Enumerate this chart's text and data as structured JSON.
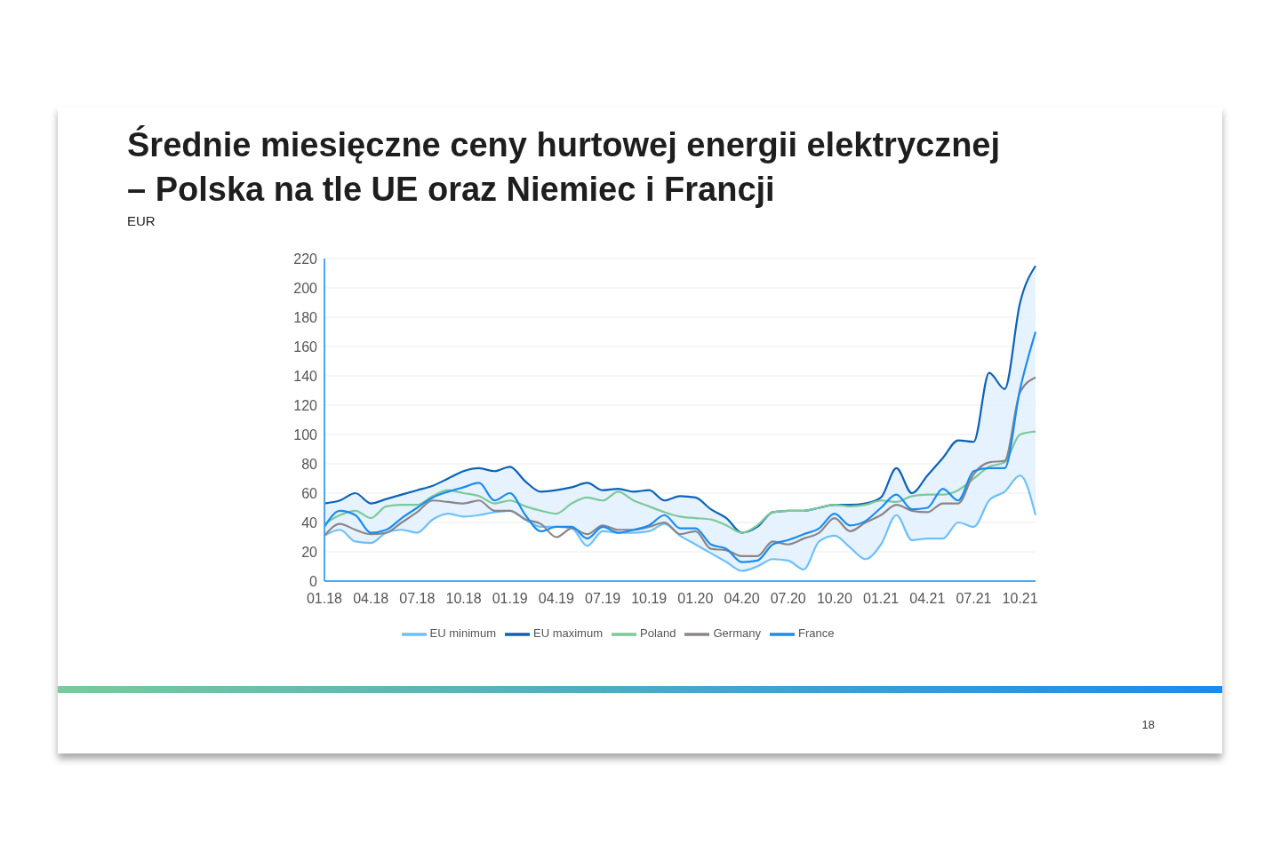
{
  "chart_data": {
    "type": "line",
    "title": "Średnie miesięczne ceny hurtowej energii elektrycznej\n– Polska na tle UE oraz Niemiec i Francji",
    "annotations": [
      "EUR",
      "18"
    ],
    "categories": [
      "01.18",
      null,
      null,
      "04.18",
      null,
      null,
      "07.18",
      null,
      null,
      "10.18",
      null,
      null,
      "01.19",
      null,
      null,
      "04.19",
      null,
      null,
      "07.19",
      null,
      null,
      "10.19",
      null,
      null,
      "01.20",
      null,
      null,
      "04.20",
      null,
      null,
      "07.20",
      null,
      null,
      "10.20",
      null,
      null,
      "01.21",
      null,
      null,
      "04.21",
      null,
      null,
      "07.21",
      null,
      null,
      "10.21",
      null
    ],
    "ylim": [
      0,
      220
    ],
    "yticks": [
      0,
      20,
      40,
      60,
      80,
      100,
      120,
      140,
      160,
      180,
      200,
      220
    ],
    "grid": "y",
    "legend": "bottom",
    "series": [
      {
        "name": "EU minimum",
        "color": "#6fc0f7",
        "values": [
          31,
          35,
          27,
          26,
          33,
          35,
          33,
          42,
          46,
          44,
          45,
          47,
          48,
          42,
          37,
          37,
          36,
          24,
          34,
          33,
          33,
          34,
          39,
          31,
          25,
          19,
          13,
          7,
          10,
          15,
          14,
          8,
          27,
          31,
          23,
          15,
          25,
          45,
          28,
          29,
          29,
          40,
          37,
          55,
          61,
          72,
          45
        ],
        "lower": [
          31,
          35,
          27,
          26,
          33,
          35,
          33,
          42,
          46,
          44,
          45,
          47,
          48,
          42,
          37,
          37,
          36,
          24,
          34,
          33,
          33,
          34,
          39,
          31,
          25,
          19,
          13,
          7,
          10,
          15,
          14,
          8,
          27,
          31,
          23,
          15,
          25,
          45,
          28,
          29,
          29,
          40,
          37,
          55,
          61,
          72,
          45
        ],
        "upper": [
          53,
          55,
          60,
          53,
          56,
          59,
          62,
          65,
          70,
          75,
          77,
          75,
          78,
          68,
          61,
          62,
          64,
          67,
          62,
          63,
          61,
          62,
          55,
          58,
          57,
          49,
          43,
          33,
          37,
          47,
          48,
          48,
          50,
          52,
          52,
          53,
          57,
          77,
          60,
          72,
          84,
          96,
          95,
          142,
          131,
          190,
          215
        ]
      },
      {
        "name": "EU maximum",
        "color": "#0b63b8",
        "values": [
          53,
          55,
          60,
          53,
          56,
          59,
          62,
          65,
          70,
          75,
          77,
          75,
          78,
          68,
          61,
          62,
          64,
          67,
          62,
          63,
          61,
          62,
          55,
          58,
          57,
          49,
          43,
          33,
          37,
          47,
          48,
          48,
          50,
          52,
          52,
          53,
          57,
          77,
          60,
          72,
          84,
          96,
          95,
          142,
          131,
          190,
          215
        ]
      },
      {
        "name": "Poland",
        "color": "#7cc99a",
        "values": [
          39,
          45,
          48,
          43,
          51,
          52,
          52,
          58,
          62,
          60,
          58,
          53,
          55,
          51,
          48,
          46,
          53,
          57,
          55,
          61,
          55,
          51,
          47,
          44,
          43,
          42,
          38,
          33,
          38,
          47,
          48,
          48,
          50,
          52,
          51,
          52,
          55,
          54,
          58,
          59,
          59,
          62,
          70,
          78,
          81,
          100,
          102
        ]
      },
      {
        "name": "Germany",
        "color": "#8c8587",
        "values": [
          31,
          39,
          35,
          32,
          33,
          40,
          47,
          55,
          54,
          53,
          55,
          48,
          48,
          42,
          39,
          30,
          36,
          32,
          38,
          35,
          35,
          37,
          40,
          32,
          34,
          22,
          21,
          17,
          17,
          27,
          25,
          29,
          33,
          43,
          34,
          40,
          45,
          52,
          48,
          47,
          53,
          53,
          73,
          81,
          82,
          129,
          139
        ]
      },
      {
        "name": "France",
        "color": "#1a8cf0",
        "values": [
          37,
          48,
          45,
          33,
          35,
          43,
          50,
          57,
          61,
          64,
          67,
          55,
          60,
          45,
          34,
          37,
          37,
          29,
          37,
          33,
          35,
          38,
          45,
          36,
          36,
          25,
          22,
          13,
          14,
          25,
          28,
          32,
          36,
          46,
          38,
          41,
          50,
          59,
          49,
          50,
          63,
          55,
          75,
          77,
          77,
          131,
          170
        ]
      }
    ]
  }
}
